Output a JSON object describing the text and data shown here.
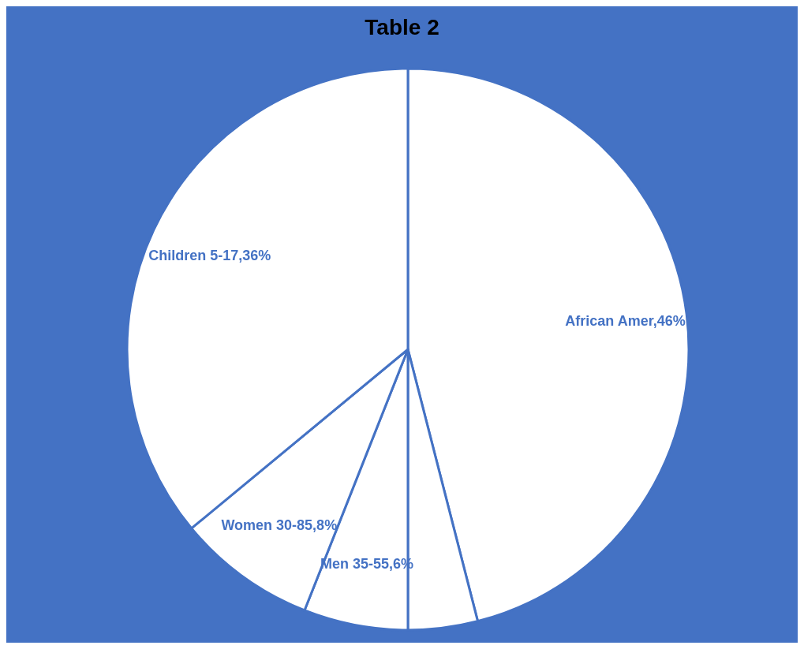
{
  "chart_data": {
    "type": "pie",
    "title": "Table 2",
    "categories": [
      "African Amer",
      null,
      "Men 35-55",
      "Women 30-85",
      "Children 5-17"
    ],
    "values": [
      46,
      4,
      6,
      8,
      36
    ],
    "colors": [
      "#ffffff",
      "#ffffff",
      "#ffffff",
      "#ffffff",
      "#ffffff"
    ],
    "value_labels": [
      "46%",
      null,
      "6%",
      "8%",
      "36%"
    ],
    "legend": false
  }
}
